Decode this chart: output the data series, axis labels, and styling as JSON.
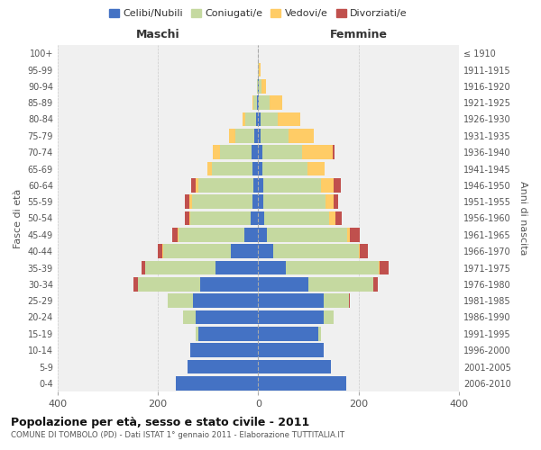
{
  "age_groups": [
    "0-4",
    "5-9",
    "10-14",
    "15-19",
    "20-24",
    "25-29",
    "30-34",
    "35-39",
    "40-44",
    "45-49",
    "50-54",
    "55-59",
    "60-64",
    "65-69",
    "70-74",
    "75-79",
    "80-84",
    "85-89",
    "90-94",
    "95-99",
    "100+"
  ],
  "birth_years": [
    "2006-2010",
    "2001-2005",
    "1996-2000",
    "1991-1995",
    "1986-1990",
    "1981-1985",
    "1976-1980",
    "1971-1975",
    "1966-1970",
    "1961-1965",
    "1956-1960",
    "1951-1955",
    "1946-1950",
    "1941-1945",
    "1936-1940",
    "1931-1935",
    "1926-1930",
    "1921-1925",
    "1916-1920",
    "1911-1915",
    "≤ 1910"
  ],
  "maschi": {
    "celibi": [
      165,
      140,
      135,
      120,
      125,
      130,
      115,
      85,
      55,
      28,
      15,
      12,
      10,
      12,
      14,
      8,
      4,
      2,
      1,
      0,
      0
    ],
    "coniugati": [
      0,
      0,
      0,
      5,
      25,
      50,
      125,
      140,
      135,
      130,
      120,
      120,
      110,
      80,
      62,
      38,
      22,
      8,
      2,
      0,
      0
    ],
    "vedovi": [
      0,
      0,
      0,
      0,
      0,
      0,
      0,
      0,
      1,
      2,
      3,
      5,
      5,
      10,
      15,
      12,
      5,
      2,
      0,
      0,
      0
    ],
    "divorziati": [
      0,
      0,
      0,
      0,
      0,
      0,
      8,
      8,
      10,
      12,
      8,
      10,
      8,
      0,
      0,
      0,
      0,
      0,
      0,
      0,
      0
    ]
  },
  "femmine": {
    "nubili": [
      175,
      145,
      130,
      120,
      130,
      130,
      100,
      55,
      30,
      18,
      12,
      10,
      10,
      8,
      8,
      5,
      4,
      2,
      2,
      0,
      0
    ],
    "coniugate": [
      0,
      0,
      0,
      5,
      20,
      50,
      130,
      185,
      170,
      160,
      130,
      125,
      115,
      90,
      80,
      55,
      35,
      20,
      5,
      2,
      0
    ],
    "vedove": [
      0,
      0,
      0,
      0,
      0,
      0,
      0,
      2,
      3,
      5,
      12,
      15,
      25,
      35,
      60,
      50,
      45,
      25,
      8,
      2,
      0
    ],
    "divorziate": [
      0,
      0,
      0,
      0,
      0,
      2,
      8,
      18,
      15,
      20,
      12,
      10,
      15,
      0,
      5,
      0,
      0,
      0,
      0,
      0,
      0
    ]
  },
  "colors": {
    "celibi_nubili": "#4472C4",
    "coniugati": "#C5D9A0",
    "vedovi": "#FFCC66",
    "divorziati": "#C0504D"
  },
  "title": "Popolazione per età, sesso e stato civile - 2011",
  "subtitle": "COMUNE DI TOMBOLO (PD) - Dati ISTAT 1° gennaio 2011 - Elaborazione TUTTITALIA.IT",
  "ylabel_left": "Fasce di età",
  "ylabel_right": "Anni di nascita",
  "xlabel_maschi": "Maschi",
  "xlabel_femmine": "Femmine",
  "xlim": 400,
  "bg_color": "#ffffff",
  "plot_bg_color": "#f0f0f0",
  "legend_labels": [
    "Celibi/Nubili",
    "Coniugati/e",
    "Vedovi/e",
    "Divorziati/e"
  ]
}
